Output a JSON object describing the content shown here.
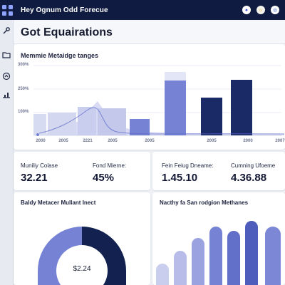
{
  "topbar": {
    "title": "Hey Ognum Odd Forecue"
  },
  "colors": {
    "topbar_bg": "#0f1b40",
    "navy": "#1a2a66",
    "periwinkle": "#7683d4",
    "light_periwinkle": "#c9cdee",
    "page_bg": "#eef0f6"
  },
  "icons": {
    "top_grid": "app-grid-icon",
    "top_right": [
      "user-avatar-icon",
      "sun-icon",
      "globe-icon"
    ],
    "sidebar": [
      "wrench-icon",
      "folder-icon",
      "circle-arrow-icon",
      "chart-icon"
    ]
  },
  "header": {
    "title": "Got Equairations"
  },
  "main_chart": {
    "title": "Memmie Metaidge tanges"
  },
  "chart_data": {
    "type": "bar",
    "title": "Memmie Metaidge tanges",
    "ytick_labels": [
      "300%",
      "250%",
      "100%"
    ],
    "xtick_labels": [
      "2000",
      "2005",
      "2221",
      "2005",
      "2005",
      "2005",
      "2000",
      "2007"
    ],
    "series": [
      {
        "values": [
          30,
          32,
          40,
          38,
          23,
          77,
          53,
          78
        ]
      },
      {
        "values": [
          0,
          0,
          0,
          0,
          0,
          12,
          0,
          0
        ]
      }
    ],
    "area_series": [
      0,
      5,
      12,
      30,
      10,
      4,
      2,
      1
    ]
  },
  "kpis": [
    {
      "label": "Muniliy Colase",
      "value": "32.21"
    },
    {
      "label": "Fond Mierne:",
      "value": "45%"
    },
    {
      "label": "Fein Feiug Dneame:",
      "value": "1.45.10"
    },
    {
      "label": "Cumning Ufoeme",
      "value": "4.36.88"
    }
  ],
  "bottom_left": {
    "title": "Baldy Metacer Mullant Inect",
    "center_label": "$2.24",
    "chart_type": "donut"
  },
  "bottom_right": {
    "title": "Nacthy fa San rodgion Methanes",
    "chart_type": "bar"
  }
}
